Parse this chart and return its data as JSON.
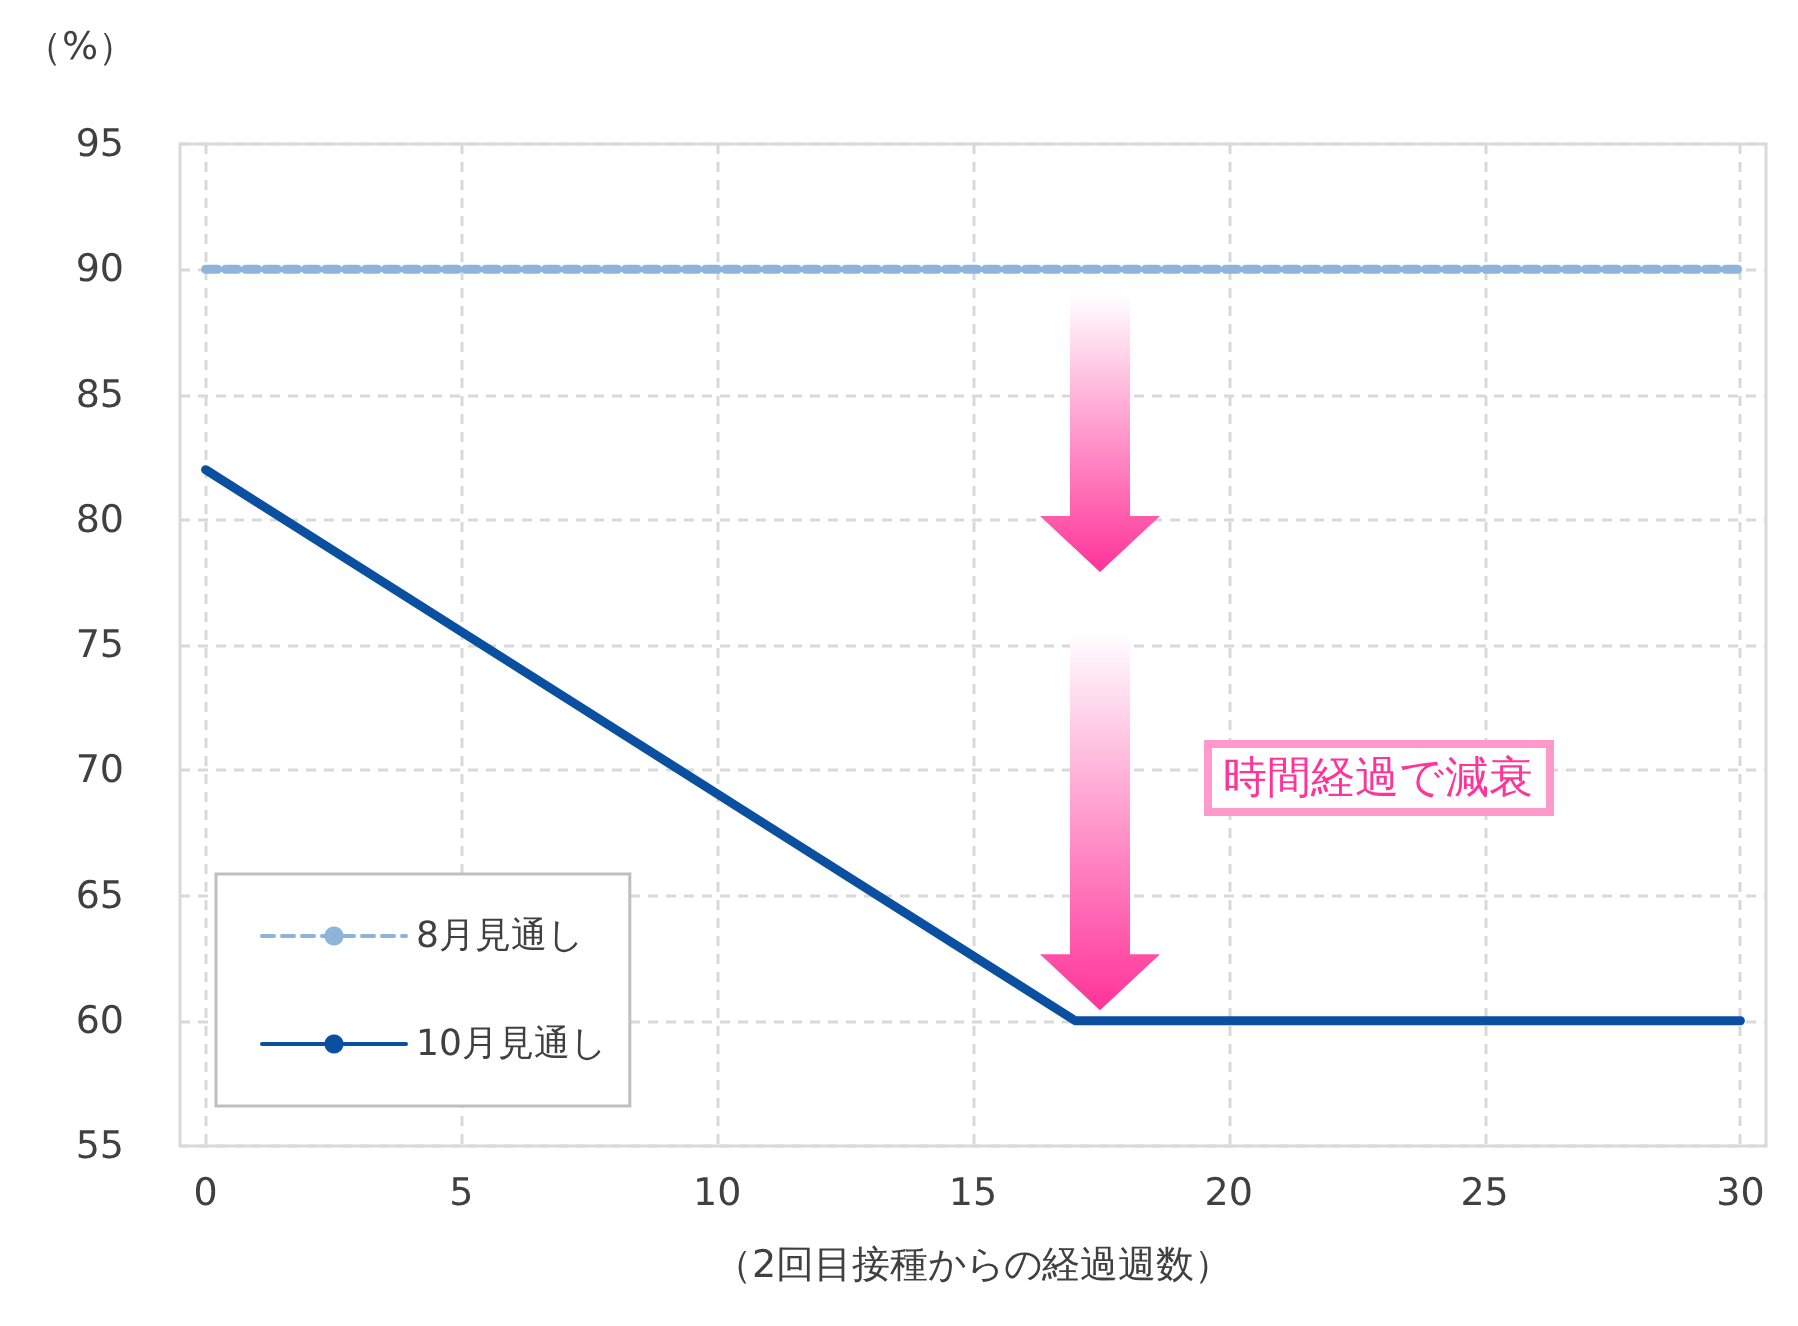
{
  "chart_data": {
    "type": "line",
    "xlabel": "（2回目接種からの経過週数）",
    "ylabel": "（%）",
    "xlim": [
      -0.5,
      30.5
    ],
    "xticks": [
      0,
      5,
      10,
      15,
      20,
      25,
      30
    ],
    "ylim": [
      55,
      95
    ],
    "yticks": [
      55,
      60,
      65,
      70,
      75,
      80,
      85,
      90,
      95
    ],
    "grid": true,
    "legend": "bottom left",
    "marker": "none",
    "annotations": [
      "時間経過で減衰"
    ],
    "series": [
      {
        "name": "8月見通し",
        "color": "#8fb4d9",
        "line_style": "dashed",
        "x": [
          0,
          30
        ],
        "values": [
          90,
          90
        ]
      },
      {
        "name": "10月見通し",
        "color": "#0b4fa0",
        "line_style": "solid",
        "x": [
          0,
          17,
          30
        ],
        "values": [
          82,
          60,
          60
        ]
      }
    ]
  }
}
